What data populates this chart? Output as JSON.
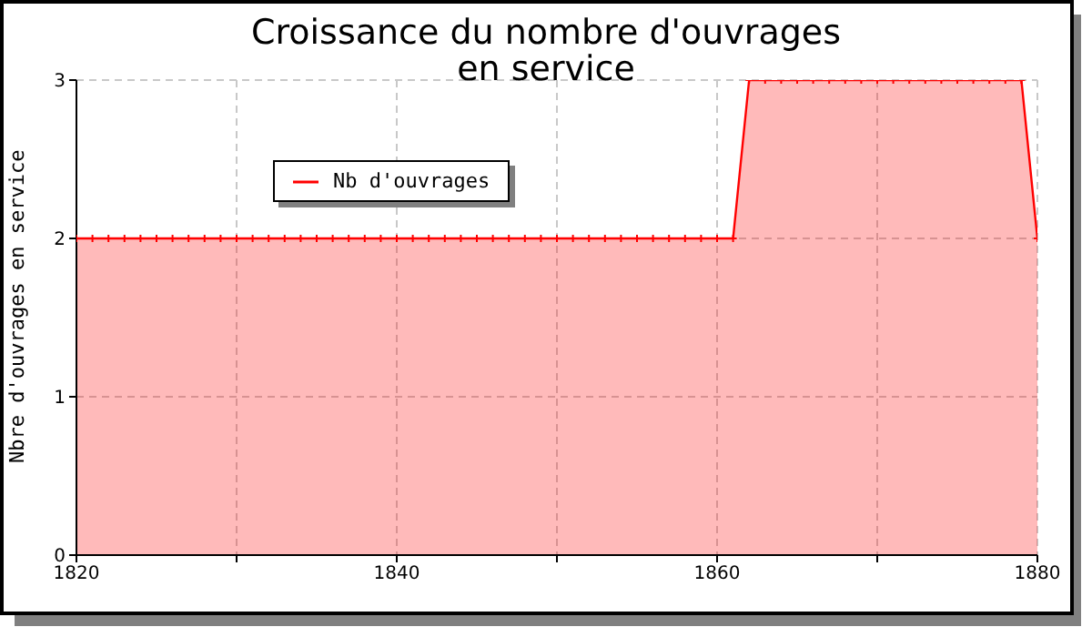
{
  "chart_data": {
    "type": "area",
    "title": "Croissance du nombre d'ouvrages\nen service",
    "ylabel": "Nbre d'ouvrages en service",
    "x": [
      1820,
      1821,
      1822,
      1823,
      1824,
      1825,
      1826,
      1827,
      1828,
      1829,
      1830,
      1831,
      1832,
      1833,
      1834,
      1835,
      1836,
      1837,
      1838,
      1839,
      1840,
      1841,
      1842,
      1843,
      1844,
      1845,
      1846,
      1847,
      1848,
      1849,
      1850,
      1851,
      1852,
      1853,
      1854,
      1855,
      1856,
      1857,
      1858,
      1859,
      1860,
      1861,
      1862,
      1863,
      1864,
      1865,
      1866,
      1867,
      1868,
      1869,
      1870,
      1871,
      1872,
      1873,
      1874,
      1875,
      1876,
      1877,
      1878,
      1879,
      1880
    ],
    "series": [
      {
        "name": "Nb d'ouvrages",
        "color": "#ff0000",
        "values": [
          2,
          2,
          2,
          2,
          2,
          2,
          2,
          2,
          2,
          2,
          2,
          2,
          2,
          2,
          2,
          2,
          2,
          2,
          2,
          2,
          2,
          2,
          2,
          2,
          2,
          2,
          2,
          2,
          2,
          2,
          2,
          2,
          2,
          2,
          2,
          2,
          2,
          2,
          2,
          2,
          2,
          2,
          3,
          3,
          3,
          3,
          3,
          3,
          3,
          3,
          3,
          3,
          3,
          3,
          3,
          3,
          3,
          3,
          3,
          3,
          2
        ]
      }
    ],
    "xlim": [
      1820,
      1880
    ],
    "xticks": [
      1820,
      {
        "value": 1830,
        "label": null
      },
      1840,
      {
        "value": 1850,
        "label": null
      },
      1860,
      {
        "value": 1870,
        "label": null
      },
      1880
    ],
    "ylim": [
      0,
      3
    ],
    "yticks": [
      0,
      1,
      2,
      3
    ],
    "grid": true,
    "legend": "top left",
    "marker": "cross",
    "line_style": "solid"
  }
}
